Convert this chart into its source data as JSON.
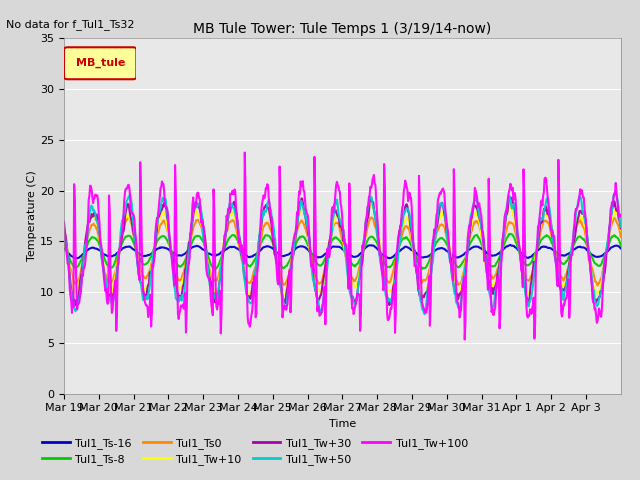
{
  "title": "MB Tule Tower: Tule Temps 1 (3/19/14-now)",
  "no_data_text": "No data for f_Tul1_Ts32",
  "xlabel": "Time",
  "ylabel": "Temperature (C)",
  "ylim": [
    0,
    35
  ],
  "yticks": [
    0,
    5,
    10,
    15,
    20,
    25,
    30,
    35
  ],
  "x_labels": [
    "Mar 19",
    "Mar 20",
    "Mar 21",
    "Mar 22",
    "Mar 23",
    "Mar 24",
    "Mar 25",
    "Mar 26",
    "Mar 27",
    "Mar 28",
    "Mar 29",
    "Mar 30",
    "Mar 31",
    "Apr 1",
    "Apr 2",
    "Apr 3"
  ],
  "legend_box_label": "MB_tule",
  "legend_box_color": "#ffff99",
  "legend_box_border": "#cc0000",
  "series": [
    {
      "label": "Tul1_Ts-16",
      "color": "#0000cc",
      "lw": 1.5
    },
    {
      "label": "Tul1_Ts-8",
      "color": "#00cc00",
      "lw": 1.5
    },
    {
      "label": "Tul1_Ts0",
      "color": "#ff8800",
      "lw": 1.5
    },
    {
      "label": "Tul1_Tw+10",
      "color": "#ffff00",
      "lw": 1.5
    },
    {
      "label": "Tul1_Tw+30",
      "color": "#aa00aa",
      "lw": 1.5
    },
    {
      "label": "Tul1_Tw+50",
      "color": "#00cccc",
      "lw": 1.5
    },
    {
      "label": "Tul1_Tw+100",
      "color": "#ff00ff",
      "lw": 1.5
    }
  ],
  "bg_color": "#d8d8d8",
  "plot_bg_color": "#e8e8e8"
}
